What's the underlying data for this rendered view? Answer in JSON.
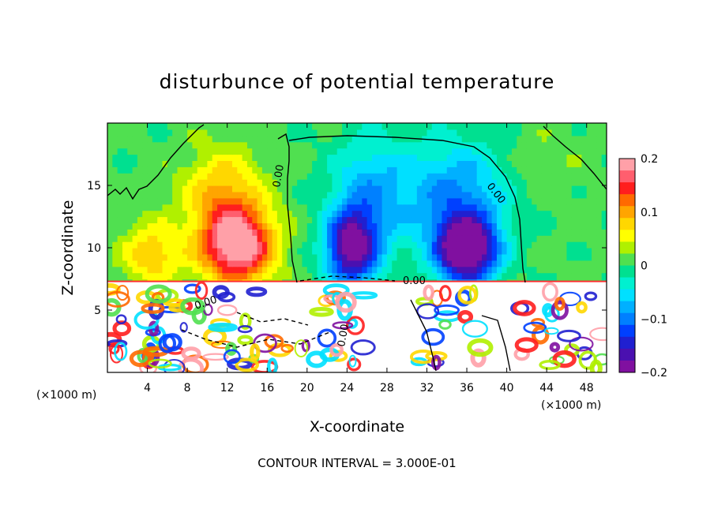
{
  "chart_data": {
    "type": "heatmap",
    "title": "disturbunce of potential temperature",
    "xlabel": "X-coordinate",
    "ylabel": "Z-coordinate",
    "x_unit": "(×1000 m)",
    "y_unit": "(×1000 m)",
    "footer": "CONTOUR INTERVAL = 3.000E-01",
    "xlim": [
      0,
      50
    ],
    "ylim": [
      0,
      20
    ],
    "x_ticks": [
      "4",
      "8",
      "12",
      "16",
      "20",
      "24",
      "28",
      "32",
      "36",
      "40",
      "44",
      "48"
    ],
    "y_ticks": [
      "5",
      "10",
      "15"
    ],
    "contour_labels": [
      "0.00",
      "0.00",
      "0.00",
      "0.00",
      "0.00"
    ],
    "colorbar": {
      "min": -0.2,
      "max": 0.2,
      "tick_labels": [
        "0.2",
        "0.1",
        "0",
        "−0.1",
        "−0.2"
      ],
      "colors": [
        "#ffa0a8",
        "#ff5e6e",
        "#ff1e1e",
        "#ff6a00",
        "#ffa500",
        "#ffd700",
        "#ffff00",
        "#b0f000",
        "#50e050",
        "#00e090",
        "#00f0d0",
        "#00e0ff",
        "#00b0ff",
        "#0080ff",
        "#0040ff",
        "#2020d0",
        "#4a10b0",
        "#8010a0"
      ]
    },
    "blobs": [
      {
        "x": 13,
        "z": 10.2,
        "sx": 3.6,
        "sz": 3.0,
        "v": 0.21
      },
      {
        "x": 11.5,
        "z": 14.5,
        "sx": 4.0,
        "sz": 3.5,
        "v": 0.08
      },
      {
        "x": 4.5,
        "z": 9.5,
        "sx": 3.0,
        "sz": 2.5,
        "v": 0.08
      },
      {
        "x": 24.5,
        "z": 10.0,
        "sx": 2.6,
        "sz": 3.0,
        "v": -0.2
      },
      {
        "x": 26.5,
        "z": 14.5,
        "sx": 4.0,
        "sz": 4.5,
        "v": -0.08
      },
      {
        "x": 36,
        "z": 9.8,
        "sx": 3.0,
        "sz": 2.6,
        "v": -0.23
      },
      {
        "x": 35,
        "z": 14,
        "sx": 5.0,
        "sz": 4.5,
        "v": -0.1
      },
      {
        "x": 44,
        "z": 17,
        "sx": 4.0,
        "sz": 3.0,
        "v": 0.015
      }
    ],
    "lower_region_top": 7.3
  }
}
